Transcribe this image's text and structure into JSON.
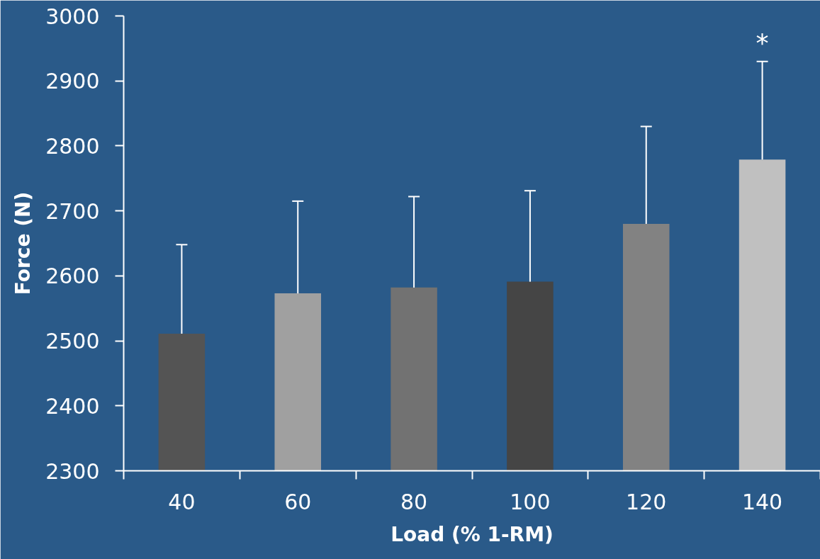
{
  "chart_data": {
    "type": "bar",
    "xlabel": "Load (% 1-RM)",
    "ylabel": "Force (N)",
    "categories": [
      "40",
      "60",
      "80",
      "100",
      "120",
      "140"
    ],
    "values": [
      2511,
      2573,
      2582,
      2591,
      2680,
      2779
    ],
    "colors": [
      "#545454",
      "#a0a0a0",
      "#727272",
      "#454545",
      "#828282",
      "#c0c0c0"
    ],
    "errors": [
      [
        2511,
        2648
      ],
      [
        2573,
        2715
      ],
      [
        2582,
        2722
      ],
      [
        2591,
        2731
      ],
      [
        2680,
        2830
      ],
      [
        2779,
        2930
      ]
    ],
    "ylim": [
      2300,
      3000
    ],
    "yticks": [
      2300,
      2400,
      2500,
      2600,
      2700,
      2800,
      2900,
      3000
    ],
    "annotations": [
      "*"
    ]
  }
}
